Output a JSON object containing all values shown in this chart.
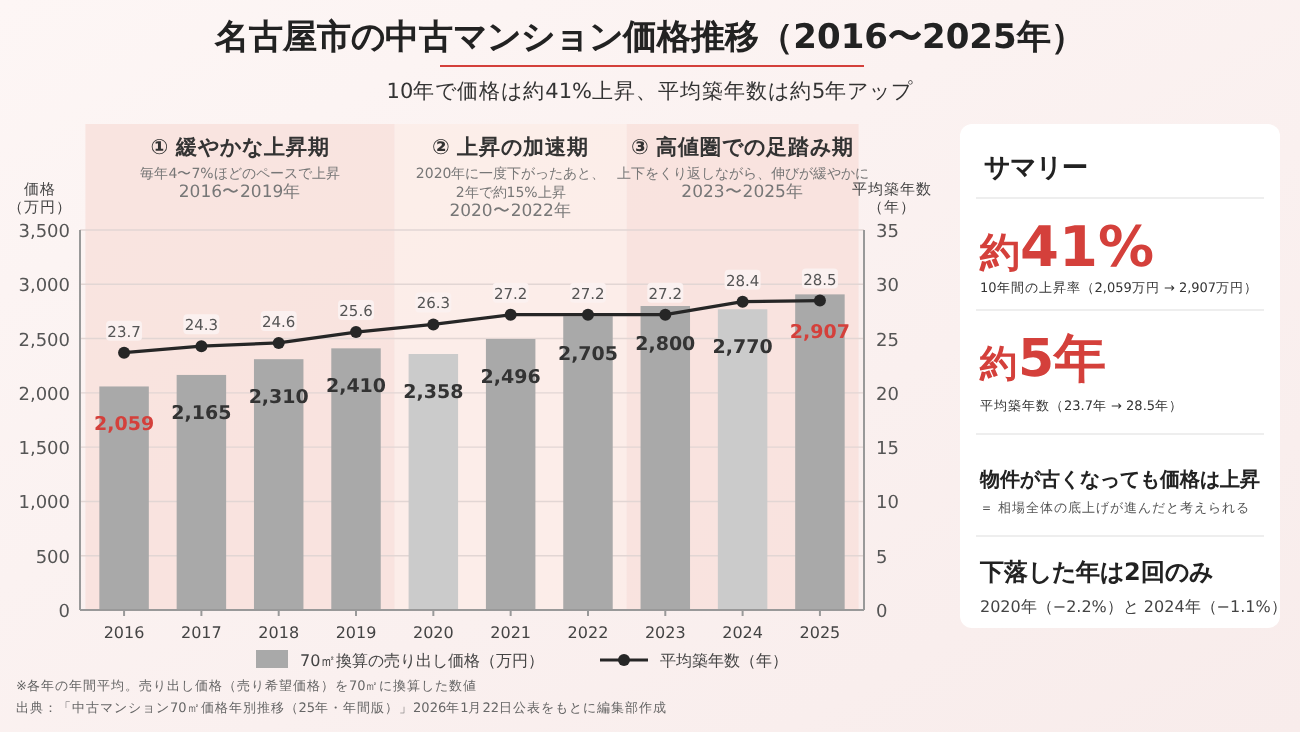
{
  "chart_data": [
    {
      "type": "bar",
      "title": "名古屋市の中古マンション価格推移（2016〜2025年）",
      "subtitle": "10年で価格は約41%上昇、平均築年数は約5年アップ",
      "categories": [
        "2016",
        "2017",
        "2018",
        "2019",
        "2020",
        "2021",
        "2022",
        "2023",
        "2024",
        "2025"
      ],
      "series": [
        {
          "name": "70㎡換算の売り出し価格（万円）",
          "type": "bar",
          "value_labels": [
            "2,059",
            "2,165",
            "2,310",
            "2,410",
            "2,358",
            "2,496",
            "2,705",
            "2,800",
            "2,770",
            "2,907"
          ],
          "colors": [
            "#a9a9a9",
            "#a9a9a9",
            "#a9a9a9",
            "#a9a9a9",
            "#cbcbcb",
            "#a9a9a9",
            "#a9a9a9",
            "#a9a9a9",
            "#cbcbcb",
            "#a9a9a9"
          ],
          "values": [
            2059,
            2165,
            2310,
            2410,
            2358,
            2496,
            2705,
            2800,
            2770,
            2907
          ]
        },
        {
          "name": "平均築年数（年）",
          "type": "line",
          "axis": "y2",
          "color": "#262626",
          "value_labels": [
            "23.7",
            "24.3",
            "24.6",
            "25.6",
            "26.3",
            "27.2",
            "27.2",
            "27.2",
            "28.4",
            "28.5"
          ],
          "values": [
            23.7,
            24.3,
            24.6,
            25.6,
            26.3,
            27.2,
            27.2,
            27.2,
            28.4,
            28.5
          ]
        }
      ],
      "ylabel": "価格（万円）",
      "y2label": "平均築年数（年）",
      "ylim": [
        0,
        3500
      ],
      "yticks": [
        {
          "value": 0,
          "label": "0"
        },
        {
          "value": 500,
          "label": "500"
        },
        {
          "value": 1000,
          "label": "1,000"
        },
        {
          "value": 1500,
          "label": "1,500"
        },
        {
          "value": 2000,
          "label": "2,000"
        },
        {
          "value": 2500,
          "label": "2,500"
        },
        {
          "value": 3000,
          "label": "3,000"
        },
        {
          "value": 3500,
          "label": "3,500"
        }
      ],
      "y2lim": [
        0,
        35
      ],
      "y2ticks": [
        0,
        5,
        10,
        15,
        20,
        25,
        30,
        35
      ],
      "bands": [
        {
          "axis": "x",
          "from": "2016",
          "to": "2019",
          "label": "① 緩やかな上昇期",
          "color": "#f8e1dc"
        },
        {
          "axis": "x",
          "from": "2020",
          "to": "2022",
          "label": "② 上昇の加速期",
          "color": "#fbece8"
        },
        {
          "axis": "x",
          "from": "2023",
          "to": "2025",
          "label": "③ 高値圏での足踏み期",
          "color": "#f8e1dc"
        }
      ],
      "annotations": [
        "毎年4〜7%ほどのペースで上昇",
        "2016〜2019年",
        "2020年に一度下がったあと、",
        "2年で約15%上昇",
        "2020〜2022年",
        "上下をくり返しながら、伸びが緩やかに",
        "2023〜2025年",
        "※各年の年間平均。売り出し価格（売り希望価格）を70㎡に換算した数値",
        "出典：「中古マンション70㎡価格年別推移（25年・年間版）」2026年1月22日公表をもとに編集部作成"
      ],
      "grid": "y",
      "legend": "bottom",
      "marker": "circle",
      "line_style": "solid"
    },
    {
      "type": "other",
      "title": "サマリー",
      "annotations": [
        "約41%",
        "10年間の上昇率（2,059万円 → 2,907万円）",
        "約5年",
        "平均築年数（23.7年 → 28.5年）",
        "物件が古くなっても価格は上昇",
        "＝ 相場全体の底上げが進んだと考えられる",
        "下落した年は2回のみ",
        "2020年（−2.2%）と 2024年（−1.1%）"
      ]
    }
  ]
}
